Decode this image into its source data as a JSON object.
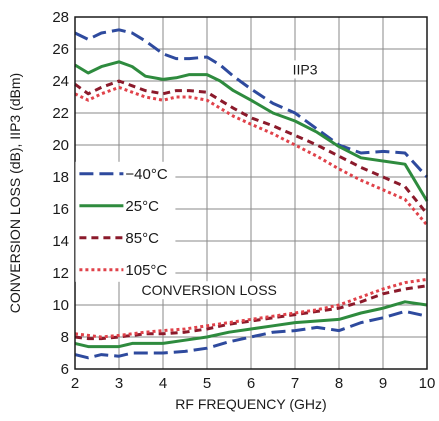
{
  "chart_data": {
    "type": "line",
    "xlabel": "RF FREQUENCY (GHz)",
    "ylabel": "CONVERSION LOSS (dB), IIP3 (dBm)",
    "xlim": [
      2,
      10
    ],
    "ylim": [
      6,
      28
    ],
    "x_ticks": [
      "2",
      "3",
      "4",
      "5",
      "6",
      "7",
      "8",
      "9",
      "10"
    ],
    "y_ticks": [
      "6",
      "8",
      "10",
      "12",
      "14",
      "16",
      "18",
      "20",
      "22",
      "24",
      "26",
      "28"
    ],
    "grid": true,
    "legend_position": "left-middle",
    "annotations": [
      "IIP3",
      "CONVERSION LOSS"
    ],
    "series": [
      {
        "name": "−40°C",
        "group": "IIP3",
        "color": "#2e4a9e",
        "dash": "long-dash",
        "x": [
          2,
          2.3,
          2.6,
          3,
          3.3,
          3.6,
          4,
          4.3,
          4.6,
          5,
          5.3,
          5.6,
          6,
          6.5,
          7,
          7.5,
          8,
          8.5,
          9,
          9.5,
          10
        ],
        "y": [
          27.0,
          26.6,
          27.0,
          27.2,
          27.0,
          26.5,
          25.7,
          25.4,
          25.4,
          25.5,
          25.0,
          24.3,
          23.5,
          22.6,
          22.0,
          21.0,
          20.0,
          19.5,
          19.6,
          19.5,
          18.0
        ]
      },
      {
        "name": "25°C",
        "group": "IIP3",
        "color": "#2e8b3e",
        "dash": "solid",
        "x": [
          2,
          2.3,
          2.6,
          3,
          3.3,
          3.6,
          4,
          4.3,
          4.6,
          5,
          5.3,
          5.6,
          6,
          6.5,
          7,
          7.5,
          8,
          8.5,
          9,
          9.5,
          10
        ],
        "y": [
          25.0,
          24.5,
          24.9,
          25.2,
          24.9,
          24.3,
          24.1,
          24.2,
          24.4,
          24.4,
          24.0,
          23.4,
          22.8,
          22.0,
          21.5,
          20.8,
          19.9,
          19.2,
          19.0,
          18.8,
          16.5
        ]
      },
      {
        "name": "85°C",
        "group": "IIP3",
        "color": "#8b1a2b",
        "dash": "short-dash",
        "x": [
          2,
          2.3,
          2.6,
          3,
          3.3,
          3.6,
          4,
          4.3,
          4.6,
          5,
          5.3,
          5.6,
          6,
          6.5,
          7,
          7.5,
          8,
          8.5,
          9,
          9.5,
          10
        ],
        "y": [
          23.8,
          23.2,
          23.6,
          24.0,
          23.7,
          23.4,
          23.2,
          23.4,
          23.4,
          23.3,
          22.8,
          22.3,
          21.7,
          21.2,
          20.6,
          20.0,
          19.3,
          18.6,
          18.0,
          17.4,
          15.7
        ]
      },
      {
        "name": "105°C",
        "group": "IIP3",
        "color": "#e0424a",
        "dash": "dotted",
        "x": [
          2,
          2.3,
          2.6,
          3,
          3.3,
          3.6,
          4,
          4.3,
          4.6,
          5,
          5.3,
          5.6,
          6,
          6.5,
          7,
          7.5,
          8,
          8.5,
          9,
          9.5,
          10
        ],
        "y": [
          23.2,
          22.8,
          23.2,
          23.6,
          23.3,
          23.0,
          22.8,
          23.0,
          23.0,
          22.8,
          22.3,
          21.8,
          21.3,
          20.7,
          20.0,
          19.3,
          18.5,
          17.8,
          17.2,
          16.6,
          15.0
        ]
      },
      {
        "name": "−40°C",
        "group": "CONVERSION LOSS",
        "color": "#2e4a9e",
        "dash": "long-dash",
        "x": [
          2,
          2.3,
          2.6,
          3,
          3.3,
          3.6,
          4,
          4.5,
          5,
          5.5,
          6,
          6.5,
          7,
          7.5,
          8,
          8.5,
          9,
          9.5,
          10
        ],
        "y": [
          6.9,
          6.7,
          6.9,
          6.8,
          7.0,
          7.0,
          7.0,
          7.1,
          7.3,
          7.7,
          8.0,
          8.3,
          8.4,
          8.6,
          8.4,
          8.9,
          9.2,
          9.6,
          9.3
        ]
      },
      {
        "name": "25°C",
        "group": "CONVERSION LOSS",
        "color": "#2e8b3e",
        "dash": "solid",
        "x": [
          2,
          2.3,
          2.6,
          3,
          3.3,
          3.6,
          4,
          4.5,
          5,
          5.5,
          6,
          6.5,
          7,
          7.5,
          8,
          8.5,
          9,
          9.5,
          10
        ],
        "y": [
          7.6,
          7.4,
          7.4,
          7.4,
          7.6,
          7.6,
          7.6,
          7.8,
          8.0,
          8.3,
          8.5,
          8.7,
          8.9,
          9.0,
          9.1,
          9.5,
          9.8,
          10.2,
          10.0
        ]
      },
      {
        "name": "85°C",
        "group": "CONVERSION LOSS",
        "color": "#8b1a2b",
        "dash": "short-dash",
        "x": [
          2,
          2.3,
          2.6,
          3,
          3.3,
          3.6,
          4,
          4.5,
          5,
          5.5,
          6,
          6.5,
          7,
          7.5,
          8,
          8.5,
          9,
          9.5,
          10
        ],
        "y": [
          8.0,
          7.9,
          7.9,
          8.0,
          8.1,
          8.2,
          8.2,
          8.3,
          8.5,
          8.8,
          9.0,
          9.2,
          9.4,
          9.6,
          9.8,
          10.2,
          10.7,
          11.0,
          11.2
        ]
      },
      {
        "name": "105°C",
        "group": "CONVERSION LOSS",
        "color": "#e0424a",
        "dash": "dotted",
        "x": [
          2,
          2.3,
          2.6,
          3,
          3.3,
          3.6,
          4,
          4.5,
          5,
          5.5,
          6,
          6.5,
          7,
          7.5,
          8,
          8.5,
          9,
          9.5,
          10
        ],
        "y": [
          8.2,
          8.1,
          8.0,
          8.1,
          8.2,
          8.3,
          8.4,
          8.5,
          8.7,
          8.9,
          9.1,
          9.3,
          9.5,
          9.7,
          10.0,
          10.5,
          11.0,
          11.4,
          11.6
        ]
      }
    ],
    "legend": [
      {
        "label": "−40°C",
        "color": "#2e4a9e",
        "dash": "long-dash"
      },
      {
        "label": "25°C",
        "color": "#2e8b3e",
        "dash": "solid"
      },
      {
        "label": "85°C",
        "color": "#8b1a2b",
        "dash": "short-dash"
      },
      {
        "label": "105°C",
        "color": "#e0424a",
        "dash": "dotted"
      }
    ]
  }
}
